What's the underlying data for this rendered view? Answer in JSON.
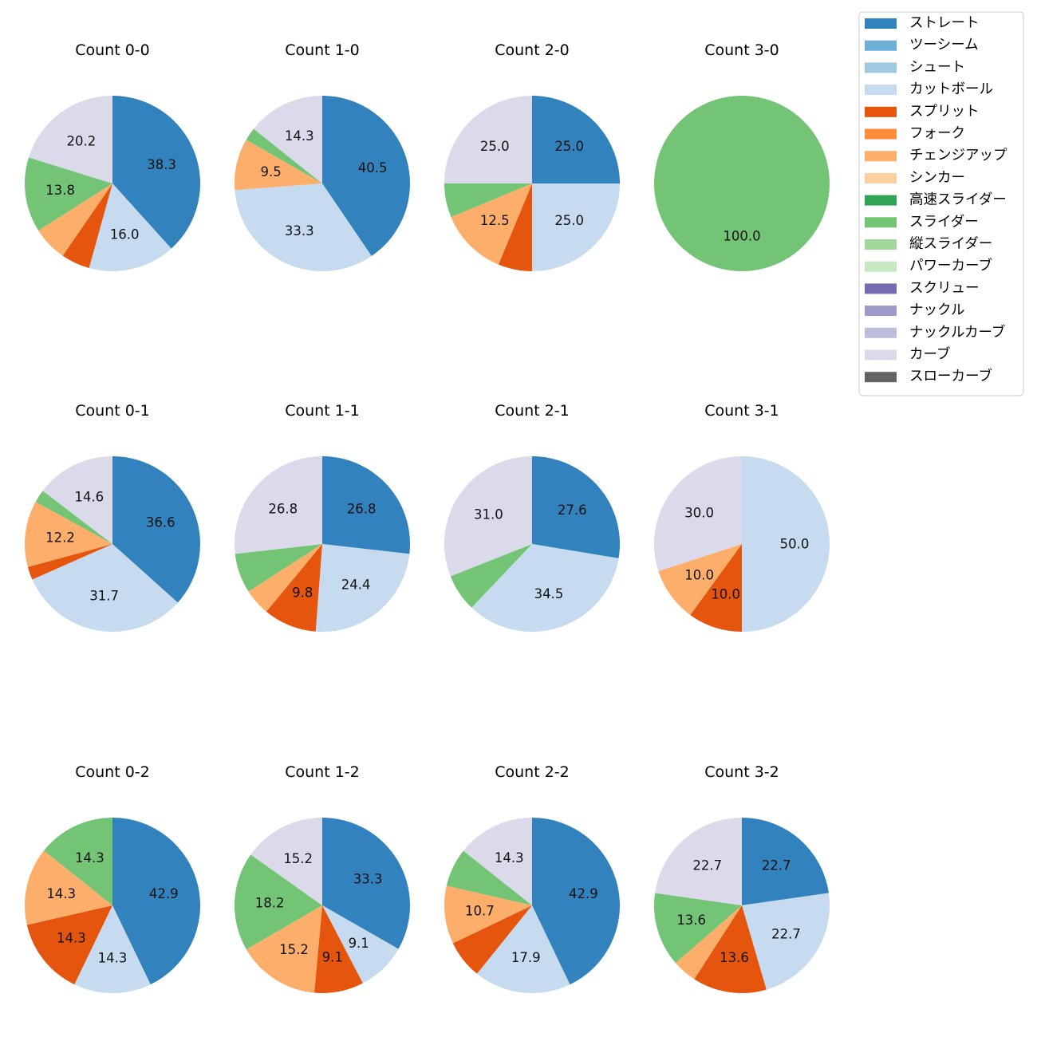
{
  "chart_data": {
    "type": "pie",
    "categories": [
      "ストレート",
      "ツーシーム",
      "シュート",
      "カットボール",
      "スプリット",
      "フォーク",
      "チェンジアップ",
      "シンカー",
      "高速スライダー",
      "スライダー",
      "縦スライダー",
      "パワーカーブ",
      "スクリュー",
      "ナックル",
      "ナックルカーブ",
      "カーブ",
      "スローカーブ"
    ],
    "colors": [
      "#3182bd",
      "#6baed6",
      "#9ecae1",
      "#c6dbef",
      "#e6550d",
      "#fd8d3c",
      "#fdae6b",
      "#fdd0a2",
      "#31a354",
      "#74c476",
      "#a1d99b",
      "#c7e9c0",
      "#756bb1",
      "#9e9ac8",
      "#bcbddc",
      "#dadaeb",
      "#636363"
    ],
    "legend": {
      "position": "top-right"
    },
    "pies": [
      {
        "title": "Count 0-0",
        "slices": [
          {
            "category": "ストレート",
            "value": 38.3
          },
          {
            "category": "カットボール",
            "value": 16.0
          },
          {
            "category": "スプリット",
            "value": 5.3
          },
          {
            "category": "チェンジアップ",
            "value": 6.4
          },
          {
            "category": "スライダー",
            "value": 13.8
          },
          {
            "category": "カーブ",
            "value": 20.2
          }
        ]
      },
      {
        "title": "Count 1-0",
        "slices": [
          {
            "category": "ストレート",
            "value": 40.5
          },
          {
            "category": "カットボール",
            "value": 33.3
          },
          {
            "category": "チェンジアップ",
            "value": 9.5
          },
          {
            "category": "スライダー",
            "value": 2.4
          },
          {
            "category": "カーブ",
            "value": 14.3
          }
        ]
      },
      {
        "title": "Count 2-0",
        "slices": [
          {
            "category": "ストレート",
            "value": 25.0
          },
          {
            "category": "カットボール",
            "value": 25.0
          },
          {
            "category": "スプリット",
            "value": 6.25
          },
          {
            "category": "チェンジアップ",
            "value": 12.5
          },
          {
            "category": "スライダー",
            "value": 6.25
          },
          {
            "category": "カーブ",
            "value": 25.0
          }
        ]
      },
      {
        "title": "Count 3-0",
        "slices": [
          {
            "category": "スライダー",
            "value": 100.0
          }
        ]
      },
      {
        "title": "Count 0-1",
        "slices": [
          {
            "category": "ストレート",
            "value": 36.6
          },
          {
            "category": "カットボール",
            "value": 31.7
          },
          {
            "category": "スプリット",
            "value": 2.4
          },
          {
            "category": "チェンジアップ",
            "value": 12.2
          },
          {
            "category": "スライダー",
            "value": 2.4
          },
          {
            "category": "カーブ",
            "value": 14.6
          }
        ]
      },
      {
        "title": "Count 1-1",
        "slices": [
          {
            "category": "ストレート",
            "value": 26.8
          },
          {
            "category": "カットボール",
            "value": 24.4
          },
          {
            "category": "スプリット",
            "value": 9.8
          },
          {
            "category": "チェンジアップ",
            "value": 4.9
          },
          {
            "category": "スライダー",
            "value": 7.3
          },
          {
            "category": "カーブ",
            "value": 26.8
          }
        ]
      },
      {
        "title": "Count 2-1",
        "slices": [
          {
            "category": "ストレート",
            "value": 27.6
          },
          {
            "category": "カットボール",
            "value": 34.5
          },
          {
            "category": "スライダー",
            "value": 6.9
          },
          {
            "category": "カーブ",
            "value": 31.0
          }
        ]
      },
      {
        "title": "Count 3-1",
        "slices": [
          {
            "category": "カットボール",
            "value": 50.0
          },
          {
            "category": "スプリット",
            "value": 10.0
          },
          {
            "category": "チェンジアップ",
            "value": 10.0
          },
          {
            "category": "カーブ",
            "value": 30.0
          }
        ]
      },
      {
        "title": "Count 0-2",
        "slices": [
          {
            "category": "ストレート",
            "value": 42.9
          },
          {
            "category": "カットボール",
            "value": 14.3
          },
          {
            "category": "スプリット",
            "value": 14.3
          },
          {
            "category": "チェンジアップ",
            "value": 14.3
          },
          {
            "category": "スライダー",
            "value": 14.3
          }
        ]
      },
      {
        "title": "Count 1-2",
        "slices": [
          {
            "category": "ストレート",
            "value": 33.3
          },
          {
            "category": "カットボール",
            "value": 9.1
          },
          {
            "category": "スプリット",
            "value": 9.1
          },
          {
            "category": "チェンジアップ",
            "value": 15.2
          },
          {
            "category": "スライダー",
            "value": 18.2
          },
          {
            "category": "カーブ",
            "value": 15.2
          }
        ]
      },
      {
        "title": "Count 2-2",
        "slices": [
          {
            "category": "ストレート",
            "value": 42.9
          },
          {
            "category": "カットボール",
            "value": 17.9
          },
          {
            "category": "スプリット",
            "value": 7.1
          },
          {
            "category": "チェンジアップ",
            "value": 10.7
          },
          {
            "category": "スライダー",
            "value": 7.1
          },
          {
            "category": "カーブ",
            "value": 14.3
          }
        ]
      },
      {
        "title": "Count 3-2",
        "slices": [
          {
            "category": "ストレート",
            "value": 22.7
          },
          {
            "category": "カットボール",
            "value": 22.7
          },
          {
            "category": "スプリット",
            "value": 13.6
          },
          {
            "category": "チェンジアップ",
            "value": 4.5
          },
          {
            "category": "スライダー",
            "value": 13.6
          },
          {
            "category": "カーブ",
            "value": 22.7
          }
        ]
      }
    ]
  }
}
